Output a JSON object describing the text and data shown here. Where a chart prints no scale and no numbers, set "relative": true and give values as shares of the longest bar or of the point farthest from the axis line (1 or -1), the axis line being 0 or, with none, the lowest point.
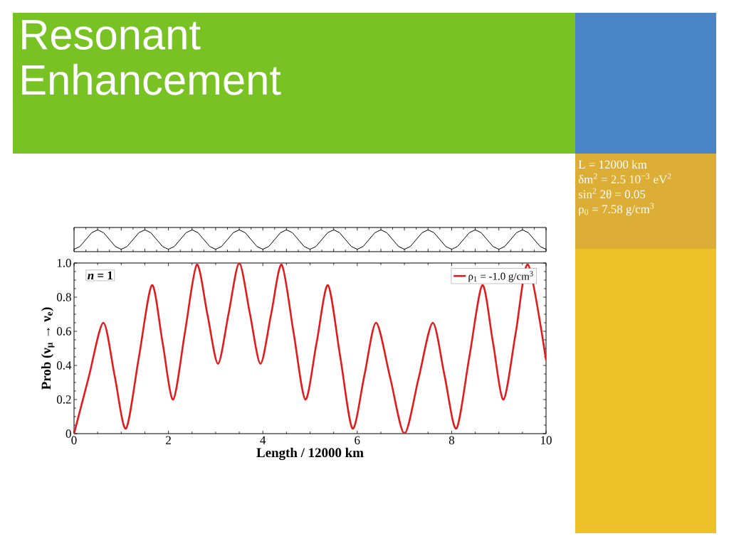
{
  "chart_data": [
    {
      "type": "line",
      "title": "Resonant Enhancement",
      "relative": true,
      "tick_labels": false,
      "annotations": [
        "L = 12000 km",
        "δm$^{2}$ = 2.5 10$^{−3}$ eV$^{2}$",
        "sin$^{2}$ 2θ = 0.05",
        "ρ$_{0}$ = 7.58 g/cm$^{3}$"
      ],
      "categories": [
        null,
        null,
        null,
        null,
        null,
        null,
        null,
        null,
        null,
        null,
        null,
        null,
        null,
        null,
        null,
        null,
        null,
        null,
        null,
        null,
        null,
        null,
        null,
        null,
        null,
        null,
        null,
        null,
        null,
        null,
        null,
        null,
        null,
        null,
        null,
        null,
        null,
        null,
        null,
        null,
        null,
        null,
        null,
        null,
        null,
        null,
        null,
        null,
        null,
        null,
        null,
        null,
        null,
        null,
        null,
        null,
        null,
        null,
        null,
        null,
        null,
        null,
        null,
        null,
        null,
        null,
        null,
        null,
        null,
        null,
        null,
        null,
        null,
        null,
        null,
        null,
        null,
        null,
        null,
        null,
        null
      ],
      "series": [
        {
          "color": "#000000",
          "values": [
            0,
            0.146,
            0.5,
            0.854,
            1,
            0.854,
            0.5,
            0.146,
            0,
            0.146,
            0.5,
            0.854,
            1,
            0.854,
            0.5,
            0.146,
            0,
            0.146,
            0.5,
            0.854,
            1,
            0.854,
            0.5,
            0.146,
            0,
            0.146,
            0.5,
            0.854,
            1,
            0.854,
            0.5,
            0.146,
            0,
            0.146,
            0.5,
            0.854,
            1,
            0.854,
            0.5,
            0.146,
            0,
            0.146,
            0.5,
            0.854,
            1,
            0.854,
            0.5,
            0.146,
            0,
            0.146,
            0.5,
            0.854,
            1,
            0.854,
            0.5,
            0.146,
            0,
            0.146,
            0.5,
            0.854,
            1,
            0.854,
            0.5,
            0.146,
            0,
            0.146,
            0.5,
            0.854,
            1,
            0.854,
            0.5,
            0.146,
            0,
            0.146,
            0.5,
            0.854,
            1,
            0.854,
            0.5,
            0.146,
            0
          ]
        }
      ]
    },
    {
      "type": "line",
      "xlabel": "Length / 12000 km",
      "ylabel": "Prob (ν$_{μ}$ → ν$_{e}$)",
      "xlim": [
        0,
        10
      ],
      "ylim": [
        0,
        1.0
      ],
      "xticks": [
        0,
        2,
        4,
        6,
        8,
        10
      ],
      "yticks": [
        0,
        0.2,
        0.4,
        0.6,
        0.8,
        {
          "value": 1.0,
          "label": "1.0"
        }
      ],
      "legend": "top right",
      "annotations": [
        "*n* = 1"
      ],
      "series": [
        {
          "name": "ρ$_{1}$ = -1.0 g/cm$^{3}$",
          "color": "#e31a1c",
          "x": [
            0,
            0.31,
            0.62,
            0.86,
            1.1,
            1.375,
            1.65,
            1.875,
            2.1,
            2.35,
            2.6,
            2.825,
            3.05,
            3.275,
            3.5,
            3.725,
            3.95,
            4.175,
            4.4,
            4.65,
            4.9,
            5.14,
            5.38,
            5.64,
            5.9,
            6.15,
            6.4,
            6.7,
            7.0,
            7.3,
            7.6,
            7.85,
            8.1,
            8.375,
            8.65,
            8.875,
            9.1,
            9.36,
            9.62,
            10
          ],
          "values": [
            0,
            0.33,
            0.65,
            0.34,
            0.03,
            0.45,
            0.87,
            0.535,
            0.2,
            0.595,
            0.99,
            0.7,
            0.41,
            0.705,
            1.0,
            0.705,
            0.41,
            0.7,
            0.99,
            0.595,
            0.2,
            0.535,
            0.87,
            0.45,
            0.03,
            0.34,
            0.65,
            0.325,
            0.0,
            0.325,
            0.65,
            0.34,
            0.03,
            0.45,
            0.87,
            0.535,
            0.2,
            0.595,
            0.99,
            0.43
          ]
        }
      ]
    }
  ]
}
